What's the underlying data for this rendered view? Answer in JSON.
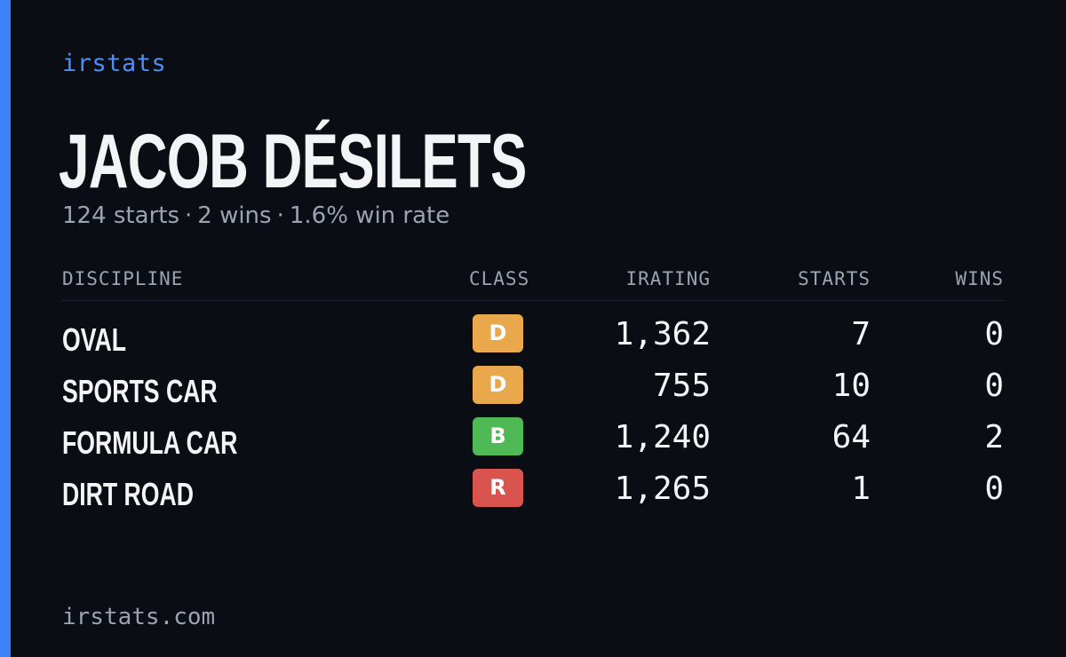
{
  "brand": "irstats",
  "driver": {
    "name": "JACOB DÉSILETS"
  },
  "summary": {
    "starts": "124 starts",
    "wins": "2 wins",
    "win_rate": "1.6% win rate",
    "separator": "·"
  },
  "table": {
    "headers": {
      "discipline": "DISCIPLINE",
      "class": "CLASS",
      "irating": "IRATING",
      "starts": "STARTS",
      "wins": "WINS"
    },
    "rows": [
      {
        "discipline": "OVAL",
        "class": "D",
        "class_color": "#e9a84c",
        "irating": "1,362",
        "starts": "7",
        "wins": "0"
      },
      {
        "discipline": "SPORTS CAR",
        "class": "D",
        "class_color": "#e9a84c",
        "irating": "755",
        "starts": "10",
        "wins": "0"
      },
      {
        "discipline": "FORMULA CAR",
        "class": "B",
        "class_color": "#4fb956",
        "irating": "1,240",
        "starts": "64",
        "wins": "2"
      },
      {
        "discipline": "DIRT ROAD",
        "class": "R",
        "class_color": "#d9534f",
        "irating": "1,265",
        "starts": "1",
        "wins": "0"
      }
    ]
  },
  "footer": {
    "url": "irstats.com"
  },
  "colors": {
    "background": "#0b0d14",
    "accent": "#3b82f6",
    "text_primary": "#f3f4f6",
    "text_muted": "#9aa3b2"
  }
}
